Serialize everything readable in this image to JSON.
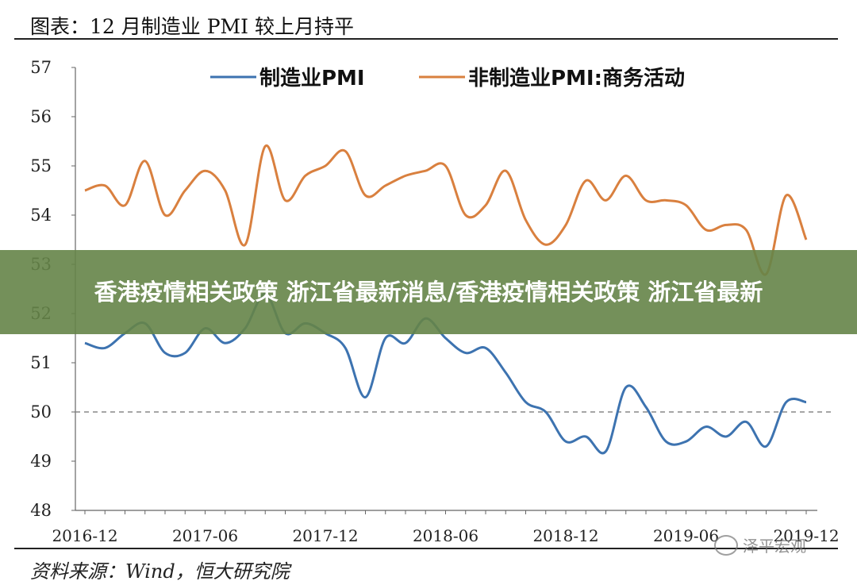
{
  "header": {
    "title": "图表：12 月制造业 PMI 较上月持平"
  },
  "footer": {
    "source": "资料来源：Wind，恒大研究院"
  },
  "banner": {
    "text": "香港疫情相关政策 浙江省最新消息/香港疫情相关政策 浙江省最新"
  },
  "watermark": {
    "text": "泽平宏观",
    "icon": "wechat-icon"
  },
  "chart_data": {
    "type": "line",
    "x": [
      "2016-12",
      "2017-01",
      "2017-02",
      "2017-03",
      "2017-04",
      "2017-05",
      "2017-06",
      "2017-07",
      "2017-08",
      "2017-09",
      "2017-10",
      "2017-11",
      "2017-12",
      "2018-01",
      "2018-02",
      "2018-03",
      "2018-04",
      "2018-05",
      "2018-06",
      "2018-07",
      "2018-08",
      "2018-09",
      "2018-10",
      "2018-11",
      "2018-12",
      "2019-01",
      "2019-02",
      "2019-03",
      "2019-04",
      "2019-05",
      "2019-06",
      "2019-07",
      "2019-08",
      "2019-09",
      "2019-10",
      "2019-11",
      "2019-12"
    ],
    "xticks": [
      "2016-12",
      "2017-06",
      "2017-12",
      "2018-06",
      "2018-12",
      "2019-06",
      "2019-12"
    ],
    "ylim": [
      48,
      57
    ],
    "yticks": [
      48,
      49,
      50,
      51,
      52,
      53,
      54,
      55,
      56,
      57
    ],
    "reference_line": 50,
    "legend_position": "top",
    "series": [
      {
        "name": "制造业PMI",
        "color": "#3d73b0",
        "values": [
          51.4,
          51.3,
          51.6,
          51.8,
          51.2,
          51.2,
          51.7,
          51.4,
          51.7,
          52.4,
          51.6,
          51.8,
          51.6,
          51.3,
          50.3,
          51.5,
          51.4,
          51.9,
          51.5,
          51.2,
          51.3,
          50.8,
          50.2,
          50.0,
          49.4,
          49.5,
          49.2,
          50.5,
          50.1,
          49.4,
          49.4,
          49.7,
          49.5,
          49.8,
          49.3,
          50.2,
          50.2
        ]
      },
      {
        "name": "非制造业PMI:商务活动",
        "color": "#d9803f",
        "values": [
          54.5,
          54.6,
          54.2,
          55.1,
          54.0,
          54.5,
          54.9,
          54.5,
          53.4,
          55.4,
          54.3,
          54.8,
          55.0,
          55.3,
          54.4,
          54.6,
          54.8,
          54.9,
          55.0,
          54.0,
          54.2,
          54.9,
          53.9,
          53.4,
          53.8,
          54.7,
          54.3,
          54.8,
          54.3,
          54.3,
          54.2,
          53.7,
          53.8,
          53.7,
          52.8,
          54.4,
          53.5
        ]
      }
    ]
  }
}
